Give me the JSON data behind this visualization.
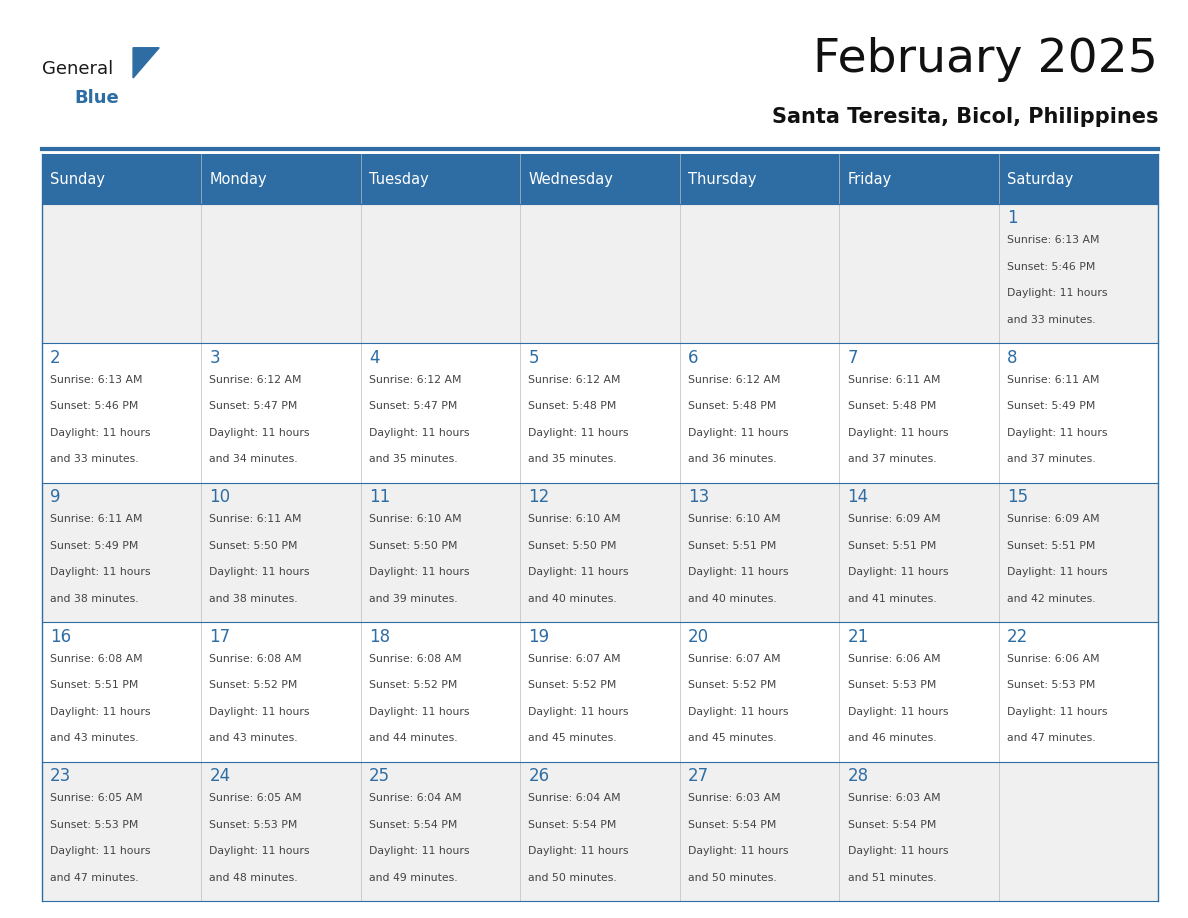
{
  "title": "February 2025",
  "subtitle": "Santa Teresita, Bicol, Philippines",
  "header_bg": "#2E6DA4",
  "header_text_color": "#FFFFFF",
  "day_number_color": "#2E6DA4",
  "text_color": "#444444",
  "line_color": "#2E6DA4",
  "days_of_week": [
    "Sunday",
    "Monday",
    "Tuesday",
    "Wednesday",
    "Thursday",
    "Friday",
    "Saturday"
  ],
  "weeks": [
    [
      {
        "day": 0
      },
      {
        "day": 0
      },
      {
        "day": 0
      },
      {
        "day": 0
      },
      {
        "day": 0
      },
      {
        "day": 0
      },
      {
        "day": 1,
        "sunrise": "6:13 AM",
        "sunset": "5:46 PM",
        "daylight": "11 hours",
        "daylight2": "and 33 minutes."
      }
    ],
    [
      {
        "day": 2,
        "sunrise": "6:13 AM",
        "sunset": "5:46 PM",
        "daylight": "11 hours",
        "daylight2": "and 33 minutes."
      },
      {
        "day": 3,
        "sunrise": "6:12 AM",
        "sunset": "5:47 PM",
        "daylight": "11 hours",
        "daylight2": "and 34 minutes."
      },
      {
        "day": 4,
        "sunrise": "6:12 AM",
        "sunset": "5:47 PM",
        "daylight": "11 hours",
        "daylight2": "and 35 minutes."
      },
      {
        "day": 5,
        "sunrise": "6:12 AM",
        "sunset": "5:48 PM",
        "daylight": "11 hours",
        "daylight2": "and 35 minutes."
      },
      {
        "day": 6,
        "sunrise": "6:12 AM",
        "sunset": "5:48 PM",
        "daylight": "11 hours",
        "daylight2": "and 36 minutes."
      },
      {
        "day": 7,
        "sunrise": "6:11 AM",
        "sunset": "5:48 PM",
        "daylight": "11 hours",
        "daylight2": "and 37 minutes."
      },
      {
        "day": 8,
        "sunrise": "6:11 AM",
        "sunset": "5:49 PM",
        "daylight": "11 hours",
        "daylight2": "and 37 minutes."
      }
    ],
    [
      {
        "day": 9,
        "sunrise": "6:11 AM",
        "sunset": "5:49 PM",
        "daylight": "11 hours",
        "daylight2": "and 38 minutes."
      },
      {
        "day": 10,
        "sunrise": "6:11 AM",
        "sunset": "5:50 PM",
        "daylight": "11 hours",
        "daylight2": "and 38 minutes."
      },
      {
        "day": 11,
        "sunrise": "6:10 AM",
        "sunset": "5:50 PM",
        "daylight": "11 hours",
        "daylight2": "and 39 minutes."
      },
      {
        "day": 12,
        "sunrise": "6:10 AM",
        "sunset": "5:50 PM",
        "daylight": "11 hours",
        "daylight2": "and 40 minutes."
      },
      {
        "day": 13,
        "sunrise": "6:10 AM",
        "sunset": "5:51 PM",
        "daylight": "11 hours",
        "daylight2": "and 40 minutes."
      },
      {
        "day": 14,
        "sunrise": "6:09 AM",
        "sunset": "5:51 PM",
        "daylight": "11 hours",
        "daylight2": "and 41 minutes."
      },
      {
        "day": 15,
        "sunrise": "6:09 AM",
        "sunset": "5:51 PM",
        "daylight": "11 hours",
        "daylight2": "and 42 minutes."
      }
    ],
    [
      {
        "day": 16,
        "sunrise": "6:08 AM",
        "sunset": "5:51 PM",
        "daylight": "11 hours",
        "daylight2": "and 43 minutes."
      },
      {
        "day": 17,
        "sunrise": "6:08 AM",
        "sunset": "5:52 PM",
        "daylight": "11 hours",
        "daylight2": "and 43 minutes."
      },
      {
        "day": 18,
        "sunrise": "6:08 AM",
        "sunset": "5:52 PM",
        "daylight": "11 hours",
        "daylight2": "and 44 minutes."
      },
      {
        "day": 19,
        "sunrise": "6:07 AM",
        "sunset": "5:52 PM",
        "daylight": "11 hours",
        "daylight2": "and 45 minutes."
      },
      {
        "day": 20,
        "sunrise": "6:07 AM",
        "sunset": "5:52 PM",
        "daylight": "11 hours",
        "daylight2": "and 45 minutes."
      },
      {
        "day": 21,
        "sunrise": "6:06 AM",
        "sunset": "5:53 PM",
        "daylight": "11 hours",
        "daylight2": "and 46 minutes."
      },
      {
        "day": 22,
        "sunrise": "6:06 AM",
        "sunset": "5:53 PM",
        "daylight": "11 hours",
        "daylight2": "and 47 minutes."
      }
    ],
    [
      {
        "day": 23,
        "sunrise": "6:05 AM",
        "sunset": "5:53 PM",
        "daylight": "11 hours",
        "daylight2": "and 47 minutes."
      },
      {
        "day": 24,
        "sunrise": "6:05 AM",
        "sunset": "5:53 PM",
        "daylight": "11 hours",
        "daylight2": "and 48 minutes."
      },
      {
        "day": 25,
        "sunrise": "6:04 AM",
        "sunset": "5:54 PM",
        "daylight": "11 hours",
        "daylight2": "and 49 minutes."
      },
      {
        "day": 26,
        "sunrise": "6:04 AM",
        "sunset": "5:54 PM",
        "daylight": "11 hours",
        "daylight2": "and 50 minutes."
      },
      {
        "day": 27,
        "sunrise": "6:03 AM",
        "sunset": "5:54 PM",
        "daylight": "11 hours",
        "daylight2": "and 50 minutes."
      },
      {
        "day": 28,
        "sunrise": "6:03 AM",
        "sunset": "5:54 PM",
        "daylight": "11 hours",
        "daylight2": "and 51 minutes."
      },
      {
        "day": 0
      }
    ]
  ],
  "logo_text_general": "General",
  "logo_text_blue": "Blue",
  "logo_color_general": "#1a1a1a",
  "logo_color_blue": "#2E6DA4",
  "logo_triangle_color": "#2E6DA4"
}
